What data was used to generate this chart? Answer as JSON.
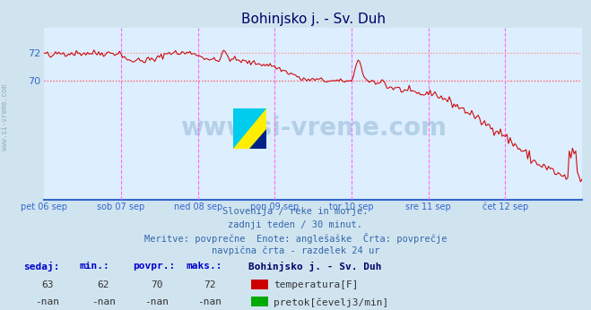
{
  "title": "Bohinjsko j. - Sv. Duh",
  "bg_color": "#d0e4f0",
  "plot_bg_color": "#ddeeff",
  "line_color": "#cc0000",
  "grid_h_color": "#ff8888",
  "vline_color": "#ff66ff",
  "axis_color": "#3366cc",
  "text_color": "#3366aa",
  "title_color": "#000066",
  "yticks": [
    70,
    72
  ],
  "ymin": 61.5,
  "ymax": 73.8,
  "xmin": 0,
  "xmax": 336,
  "day_labels": [
    "pet 06 sep",
    "sob 07 sep",
    "ned 08 sep",
    "pon 09 sep",
    "tor 10 sep",
    "sre 11 sep",
    "čet 12 sep"
  ],
  "day_tick_positions": [
    0,
    48,
    96,
    144,
    192,
    240,
    288
  ],
  "vline_positions": [
    48,
    96,
    144,
    192,
    240,
    288
  ],
  "subtitle_lines": [
    "Slovenija / reke in morje.",
    "zadnji teden / 30 minut.",
    "Meritve: povprečne  Enote: anglešaške  Črta: povprečje",
    "navpična črta - razdelek 24 ur"
  ],
  "legend_title": "Bohinjsko j. - Sv. Duh",
  "stats_headers": [
    "sedaj:",
    "min.:",
    "povpr.:",
    "maks.:"
  ],
  "stats_temp": [
    "63",
    "62",
    "70",
    "72"
  ],
  "stats_flow": [
    "-nan",
    "-nan",
    "-nan",
    "-nan"
  ],
  "legend_items": [
    {
      "label": "temperatura[F]",
      "color": "#cc0000"
    },
    {
      "label": "pretok[čevelj3/min]",
      "color": "#00aa00"
    }
  ],
  "watermark_text": "www.si-vreme.com",
  "watermark_color": "#6699bb",
  "watermark_alpha": 0.35,
  "side_text": "www.si-vreme.com",
  "avg_line_value": 70,
  "avg_line_color": "#ff6666"
}
